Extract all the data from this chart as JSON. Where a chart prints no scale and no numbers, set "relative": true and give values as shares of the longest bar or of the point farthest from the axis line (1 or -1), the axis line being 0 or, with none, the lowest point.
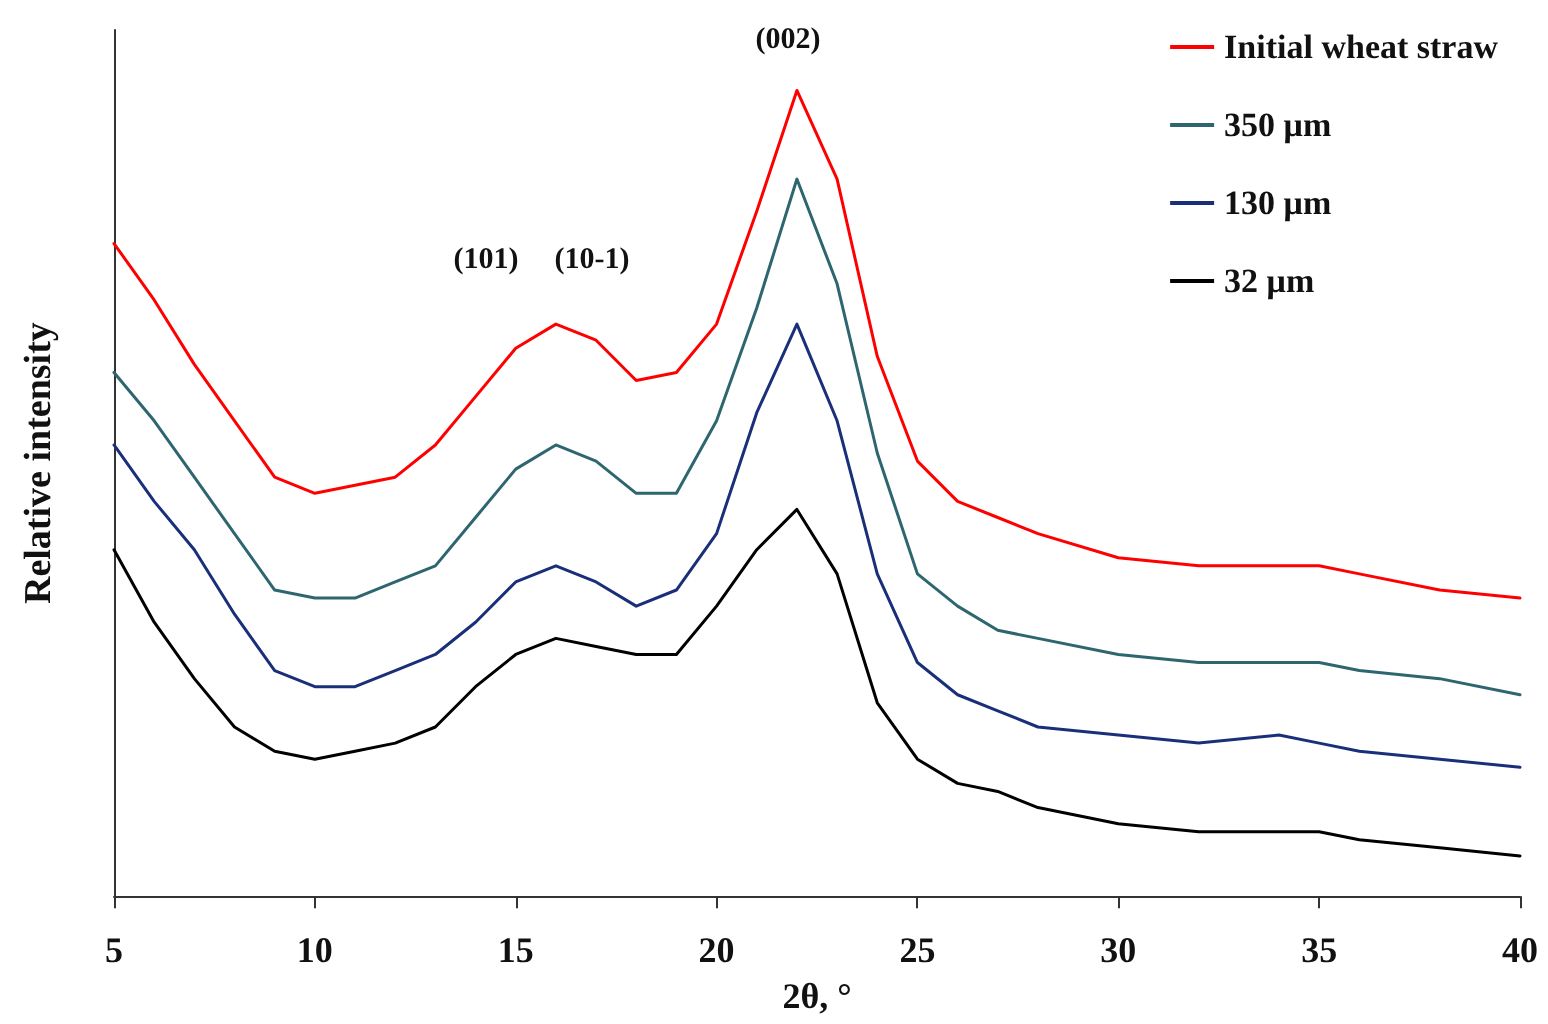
{
  "chart_data": {
    "type": "line",
    "relative": true,
    "xlabel": "2θ, °",
    "ylabel": "Relative intensity",
    "xlim": [
      5,
      40
    ],
    "xticks": [
      5,
      10,
      15,
      20,
      25,
      30,
      35,
      40
    ],
    "x": [
      5,
      6,
      7,
      8,
      9,
      10,
      11,
      12,
      13,
      14,
      15,
      16,
      17,
      18,
      19,
      20,
      21,
      22,
      23,
      24,
      25,
      26,
      27,
      28,
      30,
      32,
      34,
      35,
      36,
      38,
      40
    ],
    "series": [
      {
        "name": "Initial wheat straw",
        "color": "#ff0000",
        "values": [
          0.81,
          0.74,
          0.66,
          0.59,
          0.52,
          0.5,
          0.51,
          0.52,
          0.56,
          0.62,
          0.68,
          0.71,
          0.69,
          0.64,
          0.65,
          0.71,
          0.85,
          1,
          0.89,
          0.67,
          0.54,
          0.49,
          0.47,
          0.45,
          0.42,
          0.41,
          0.41,
          0.41,
          0.4,
          0.38,
          0.37
        ]
      },
      {
        "name": "350 μm",
        "color": "#2e6670",
        "values": [
          0.65,
          0.59,
          0.52,
          0.45,
          0.38,
          0.37,
          0.37,
          0.39,
          0.41,
          0.47,
          0.53,
          0.56,
          0.54,
          0.5,
          0.5,
          0.59,
          0.73,
          0.89,
          0.76,
          0.55,
          0.4,
          0.36,
          0.33,
          0.32,
          0.3,
          0.29,
          0.29,
          0.29,
          0.28,
          0.27,
          0.25
        ]
      },
      {
        "name": "130 μm",
        "color": "#1a2f7a",
        "values": [
          0.56,
          0.49,
          0.43,
          0.35,
          0.28,
          0.26,
          0.26,
          0.28,
          0.3,
          0.34,
          0.39,
          0.41,
          0.39,
          0.36,
          0.38,
          0.45,
          0.6,
          0.71,
          0.59,
          0.4,
          0.29,
          0.25,
          0.23,
          0.21,
          0.2,
          0.19,
          0.2,
          0.19,
          0.18,
          0.17,
          0.16
        ]
      },
      {
        "name": "32 μm",
        "color": "#000000",
        "values": [
          0.43,
          0.34,
          0.27,
          0.21,
          0.18,
          0.17,
          0.18,
          0.19,
          0.21,
          0.26,
          0.3,
          0.32,
          0.31,
          0.3,
          0.3,
          0.36,
          0.43,
          0.48,
          0.4,
          0.24,
          0.17,
          0.14,
          0.13,
          0.11,
          0.09,
          0.08,
          0.08,
          0.08,
          0.07,
          0.06,
          0.05
        ]
      }
    ],
    "annotations": [
      "(101)",
      "(10-1)",
      "(002)"
    ],
    "legend": "top right",
    "marker": "none",
    "line_style": "solid",
    "grid": false
  }
}
